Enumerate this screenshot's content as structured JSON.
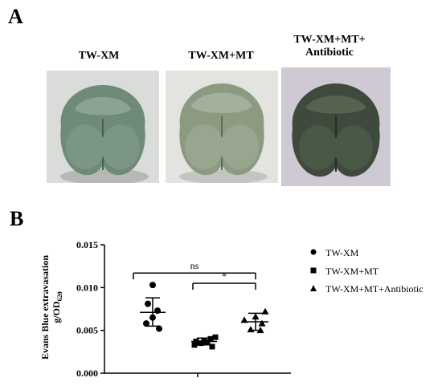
{
  "panel_a": {
    "letter": "A",
    "groups": [
      {
        "label": "TW-XM"
      },
      {
        "label": "TW-XM+MT"
      },
      {
        "label_line1": "TW-XM+MT+",
        "label_line2": "Antibiotic"
      }
    ]
  },
  "panel_b": {
    "letter": "B"
  },
  "chart_data": {
    "type": "scatter",
    "ylabel_line1": "Evans Blue extravasation",
    "ylabel_line2": "g/OD",
    "ylabel_sub": "620",
    "ylim": [
      0,
      0.015
    ],
    "yticks": [
      "0.000",
      "0.005",
      "0.010",
      "0.015"
    ],
    "grid": false,
    "legend_position": "right",
    "series": [
      {
        "name": "TW-XM",
        "marker": "circle",
        "values": [
          0.0103,
          0.0081,
          0.0073,
          0.0065,
          0.0058,
          0.0052
        ],
        "mean": 0.0071,
        "sd_upper": 0.0088,
        "sd_lower": 0.0055
      },
      {
        "name": "TW-XM+MT",
        "marker": "square",
        "values": [
          0.0042,
          0.004,
          0.0038,
          0.0037,
          0.0036,
          0.0035,
          0.0033,
          0.0031
        ],
        "mean": 0.0037,
        "sd_upper": 0.0041,
        "sd_lower": 0.0033
      },
      {
        "name": "TW-XM+MT+Antibiotic",
        "marker": "triangle",
        "values": [
          0.0072,
          0.0066,
          0.0062,
          0.0058,
          0.0051,
          0.005
        ],
        "mean": 0.006,
        "sd_upper": 0.007,
        "sd_lower": 0.005
      }
    ],
    "annotations": [
      {
        "label": "ns",
        "from": 0,
        "to": 2
      },
      {
        "label": "*",
        "from": 1,
        "to": 2
      }
    ]
  }
}
